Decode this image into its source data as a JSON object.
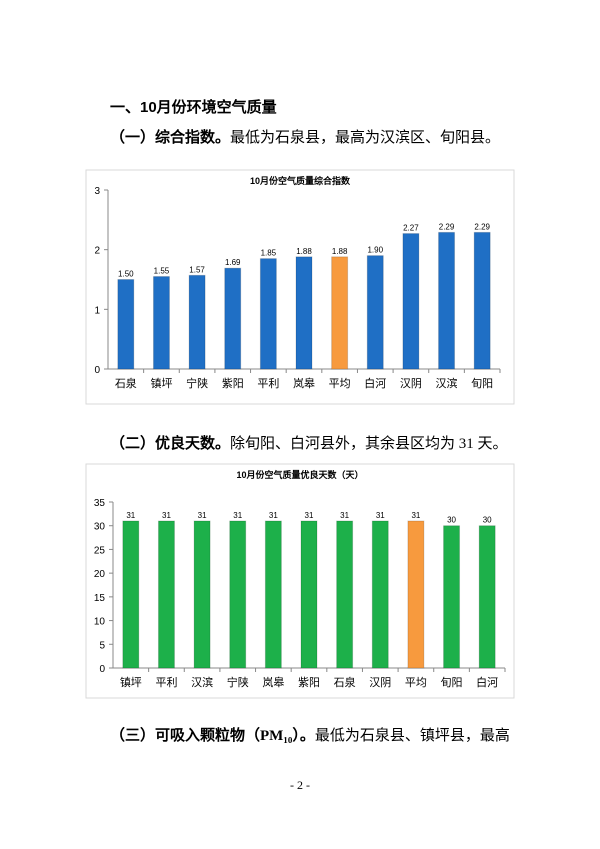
{
  "heading": "一、10月份环境空气质量",
  "paragraphs": [
    {
      "lead": "（一）综合指数。",
      "text": "最低为石泉县，最高为汉滨区、旬阳县。"
    },
    {
      "lead": "（二）优良天数。",
      "text": "除旬阳、白河县外，其余县区均为 31 天。"
    },
    {
      "lead": "（三）可吸入颗粒物（PM₁₀）。",
      "text": "最低为石泉县、镇坪县，最高"
    }
  ],
  "chart_data": [
    {
      "type": "bar",
      "title": "10月份空气质量综合指数",
      "categories": [
        "石泉",
        "镇坪",
        "宁陕",
        "紫阳",
        "平利",
        "岚皋",
        "平均",
        "白河",
        "汉阴",
        "汉滨",
        "旬阳"
      ],
      "values": [
        1.5,
        1.55,
        1.57,
        1.69,
        1.85,
        1.88,
        1.88,
        1.9,
        2.27,
        2.29,
        2.29
      ],
      "value_labels": [
        "1.50",
        "1.55",
        "1.57",
        "1.69",
        "1.85",
        "1.88",
        "1.88",
        "1.90",
        "2.27",
        "2.29",
        "2.29"
      ],
      "colors": [
        "#1f6fc5",
        "#1f6fc5",
        "#1f6fc5",
        "#1f6fc5",
        "#1f6fc5",
        "#1f6fc5",
        "#f79a3e",
        "#1f6fc5",
        "#1f6fc5",
        "#1f6fc5",
        "#1f6fc5"
      ],
      "ylim": [
        0,
        3
      ],
      "yticks": [
        0,
        1,
        2,
        3
      ]
    },
    {
      "type": "bar",
      "title": "10月份空气质量优良天数（天）",
      "categories": [
        "镇坪",
        "平利",
        "汉滨",
        "宁陕",
        "岚皋",
        "紫阳",
        "石泉",
        "汉阴",
        "平均",
        "旬阳",
        "白河"
      ],
      "values": [
        31,
        31,
        31,
        31,
        31,
        31,
        31,
        31,
        31,
        30,
        30
      ],
      "colors": [
        "#1db04a",
        "#1db04a",
        "#1db04a",
        "#1db04a",
        "#1db04a",
        "#1db04a",
        "#1db04a",
        "#1db04a",
        "#f79a3e",
        "#1db04a",
        "#1db04a"
      ],
      "ylim": [
        0,
        35
      ],
      "yticks": [
        0,
        5,
        10,
        15,
        20,
        25,
        30,
        35
      ]
    }
  ],
  "page_number": "- 2 -"
}
